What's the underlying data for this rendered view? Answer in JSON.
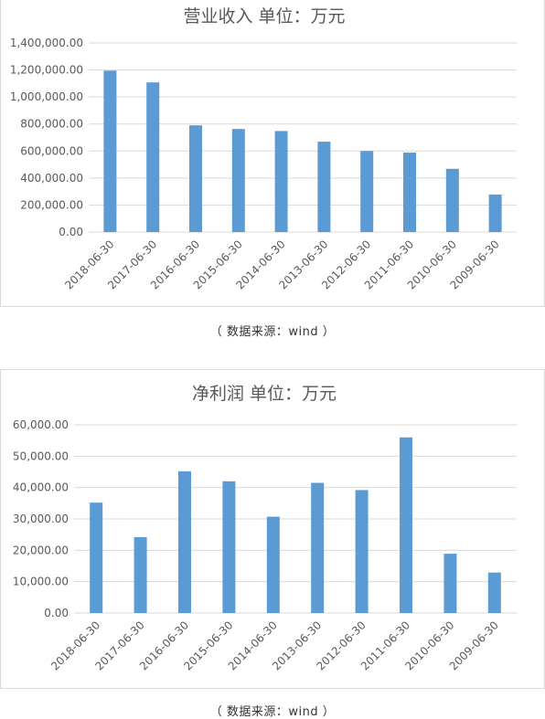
{
  "chart_data": [
    {
      "type": "bar",
      "title": "营业收入  单位：万元",
      "categories": [
        "2018-06-30",
        "2017-06-30",
        "2016-06-30",
        "2015-06-30",
        "2014-06-30",
        "2013-06-30",
        "2012-06-30",
        "2011-06-30",
        "2010-06-30",
        "2009-06-30"
      ],
      "values": [
        1195000,
        1108000,
        790000,
        763000,
        748000,
        669000,
        600000,
        588000,
        468000,
        278000
      ],
      "yticks": [
        "1,400,000.00",
        "1,200,000.00",
        "1,000,000.00",
        "800,000.00",
        "600,000.00",
        "400,000.00",
        "200,000.00",
        "0.00"
      ],
      "ylim": [
        0,
        1400000
      ],
      "grid": true,
      "color": "#5b9bd5"
    },
    {
      "type": "bar",
      "title": "净利润  单位：万元",
      "categories": [
        "2018-06-30",
        "2017-06-30",
        "2016-06-30",
        "2015-06-30",
        "2014-06-30",
        "2013-06-30",
        "2012-06-30",
        "2011-06-30",
        "2010-06-30",
        "2009-06-30"
      ],
      "values": [
        35200,
        24200,
        45200,
        42000,
        30700,
        41500,
        39200,
        56000,
        18900,
        12900
      ],
      "yticks": [
        "60,000.00",
        "50,000.00",
        "40,000.00",
        "30,000.00",
        "20,000.00",
        "10,000.00",
        "0.00"
      ],
      "ylim": [
        0,
        60000
      ],
      "grid": true,
      "color": "#5b9bd5"
    }
  ],
  "captions": [
    "（ 数据来源：wind ）",
    "（ 数据来源：wind ）"
  ]
}
